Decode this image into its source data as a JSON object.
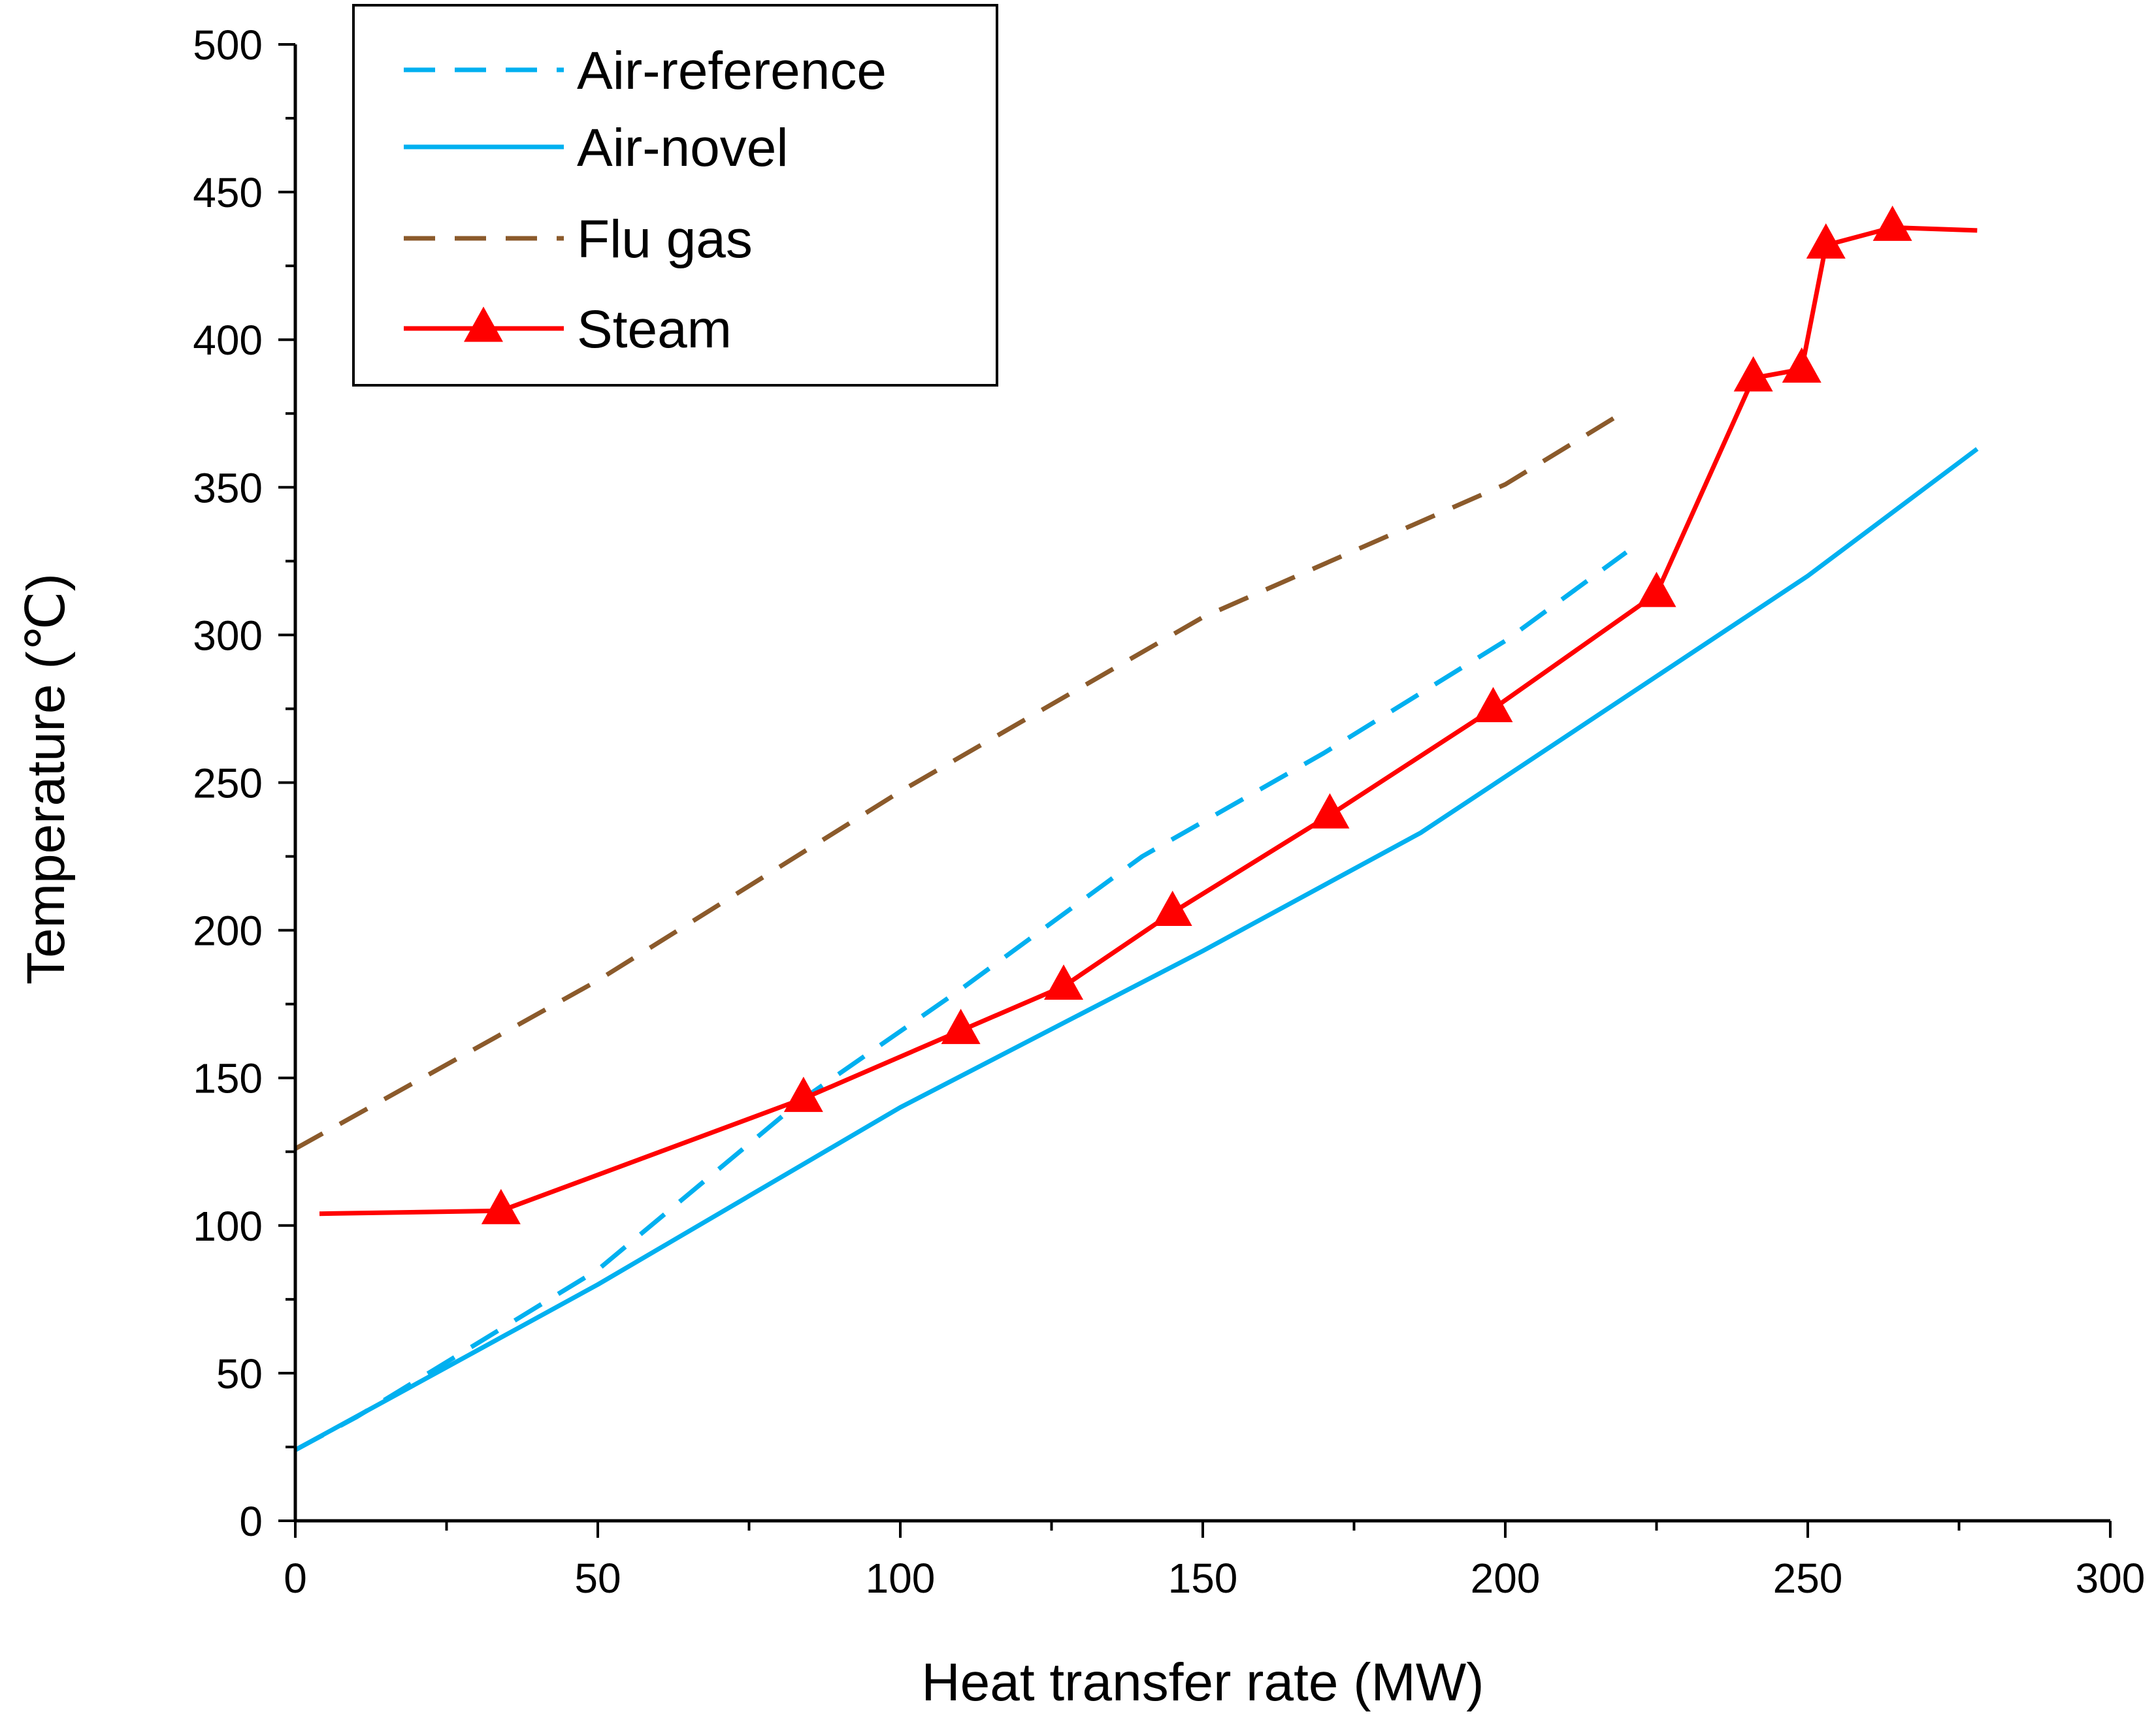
{
  "chart_data": {
    "type": "line",
    "title": "",
    "xlabel": "Heat transfer rate (MW)",
    "ylabel": "Temperature (℃)",
    "xlim": [
      0,
      300
    ],
    "ylim": [
      0,
      500
    ],
    "xticks": [
      "0",
      "50",
      "100",
      "150",
      "200",
      "250",
      "300"
    ],
    "yticks": [
      "0",
      "50",
      "100",
      "150",
      "200",
      "250",
      "300",
      "350",
      "400",
      "450",
      "500"
    ],
    "grid": false,
    "legend_position": "top-left",
    "series": [
      {
        "name": "Air-reference",
        "color": "#00B0F0",
        "style": "dashed",
        "marker": "none",
        "points": [
          [
            0,
            24
          ],
          [
            10,
            35
          ],
          [
            30,
            60
          ],
          [
            50,
            85
          ],
          [
            84,
            143
          ],
          [
            110,
            180
          ],
          [
            140,
            225
          ],
          [
            170,
            260
          ],
          [
            200,
            298
          ],
          [
            220,
            328
          ]
        ]
      },
      {
        "name": "Air-novel",
        "color": "#00B0F0",
        "style": "solid",
        "marker": "none",
        "points": [
          [
            0,
            24
          ],
          [
            50,
            80
          ],
          [
            100,
            140
          ],
          [
            150,
            193
          ],
          [
            186,
            233
          ],
          [
            200,
            252
          ],
          [
            250,
            320
          ],
          [
            278,
            363
          ]
        ]
      },
      {
        "name": "Flu gas",
        "color": "#8B5A2B",
        "style": "dashed",
        "marker": "none",
        "points": [
          [
            0,
            126
          ],
          [
            50,
            183
          ],
          [
            100,
            247
          ],
          [
            150,
            306
          ],
          [
            200,
            351
          ],
          [
            220,
            376
          ]
        ]
      },
      {
        "name": "Steam",
        "color": "#FF0000",
        "style": "solid",
        "marker": "triangle",
        "points": [
          [
            4,
            104
          ],
          [
            34,
            105
          ],
          [
            84,
            143
          ],
          [
            110,
            166
          ],
          [
            127,
            181
          ],
          [
            145,
            206
          ],
          [
            171,
            239
          ],
          [
            198,
            275
          ],
          [
            225,
            314
          ],
          [
            241,
            387
          ],
          [
            249,
            390
          ],
          [
            253,
            432
          ],
          [
            264,
            438
          ],
          [
            278,
            437
          ]
        ],
        "marker_indices": [
          1,
          2,
          3,
          4,
          5,
          6,
          7,
          8,
          9,
          10,
          11,
          12
        ]
      }
    ]
  }
}
